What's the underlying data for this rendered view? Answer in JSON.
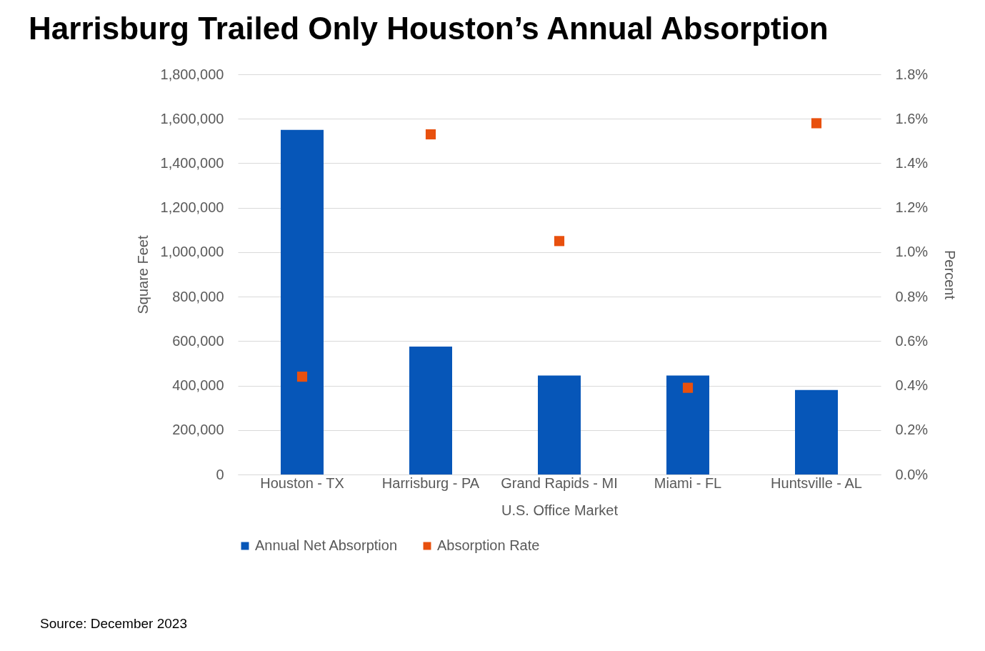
{
  "chart_data": {
    "type": "bar",
    "title": "Harrisburg Trailed Only Houston’s Annual Absorption",
    "categories": [
      "Houston - TX",
      "Harrisburg - PA",
      "Grand Rapids - MI",
      "Miami - FL",
      "Huntsville - AL"
    ],
    "series": [
      {
        "name": "Annual Net Absorption",
        "color": "#0656b8",
        "values": [
          1550000,
          575000,
          445000,
          445000,
          380000
        ]
      },
      {
        "name": "Absorption Rate",
        "type": "scatter",
        "axis": "y2",
        "color": "#e8500e",
        "values": [
          0.44,
          1.53,
          1.05,
          0.39,
          1.58
        ]
      }
    ],
    "xlabel": "U.S. Office Market",
    "ylabel": "Square Feet",
    "y2label": "Percent",
    "ylim": [
      0,
      1800000
    ],
    "yticks": [
      0,
      {
        "value": 200000,
        "label": "200,000"
      },
      {
        "value": 400000,
        "label": "400,000"
      },
      {
        "value": 600000,
        "label": "600,000"
      },
      {
        "value": 800000,
        "label": "800,000"
      },
      {
        "value": 1000000,
        "label": "1,000,000"
      },
      {
        "value": 1200000,
        "label": "1,200,000"
      },
      {
        "value": 1400000,
        "label": "1,400,000"
      },
      {
        "value": 1600000,
        "label": "1,600,000"
      },
      {
        "value": 1800000,
        "label": "1,800,000"
      }
    ],
    "y2lim": [
      0,
      1.8
    ],
    "y2ticks": [
      {
        "value": 0,
        "label": "0.0%"
      },
      {
        "value": 0.2,
        "label": "0.2%"
      },
      {
        "value": 0.4,
        "label": "0.4%"
      },
      {
        "value": 0.6,
        "label": "0.6%"
      },
      {
        "value": 0.8,
        "label": "0.8%"
      },
      {
        "value": 1.0,
        "label": "1.0%"
      },
      {
        "value": 1.2,
        "label": "1.2%"
      },
      {
        "value": 1.4,
        "label": "1.4%"
      },
      {
        "value": 1.6,
        "label": "1.6%"
      },
      {
        "value": 1.8,
        "label": "1.8%"
      }
    ],
    "grid": "y",
    "legend": "bottom",
    "marker": "square",
    "annotations": [
      "Source: December 2023"
    ]
  }
}
